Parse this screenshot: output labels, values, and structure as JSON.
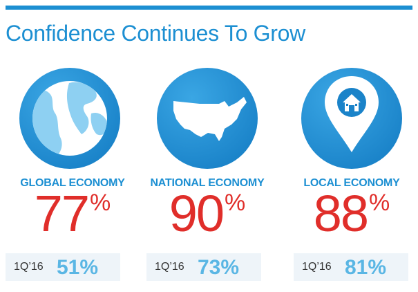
{
  "title": "Confidence Continues To Grow",
  "colors": {
    "accent_blue": "#1c8fd2",
    "highlight_red": "#e02e2a",
    "light_blue": "#5ab6e4",
    "panel_bg": "#eef4f9"
  },
  "metrics": [
    {
      "icon": "globe-icon",
      "label": "GLOBAL ECONOMY",
      "value": "77",
      "unit": "%",
      "period": "1Q’16",
      "prior_value": "51%"
    },
    {
      "icon": "usa-map-icon",
      "label": "NATIONAL ECONOMY",
      "value": "90",
      "unit": "%",
      "period": "1Q’16",
      "prior_value": "73%"
    },
    {
      "icon": "house-location-pin-icon",
      "label": "LOCAL ECONOMY",
      "value": "88",
      "unit": "%",
      "period": "1Q’16",
      "prior_value": "81%"
    }
  ]
}
